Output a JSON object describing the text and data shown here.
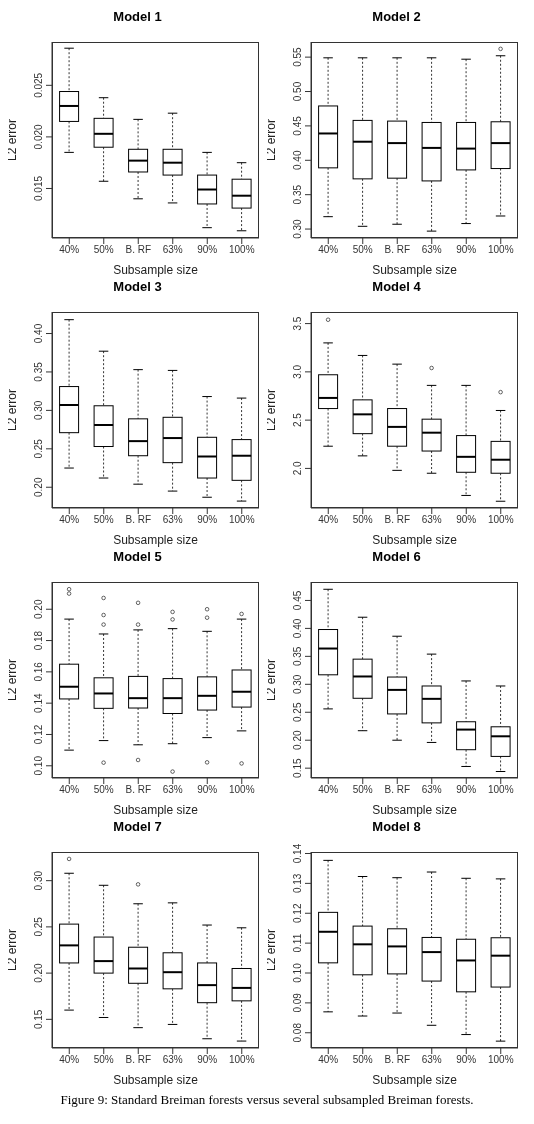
{
  "chart_data": [
    {
      "type": "box",
      "title": "Model 1",
      "xlabel": "Subsample size",
      "ylabel": "L2 error",
      "categories": [
        "40%",
        "50%",
        "B. RF",
        "63%",
        "90%",
        "100%"
      ],
      "ylim": [
        0.0102,
        0.0292
      ],
      "yticks": [
        {
          "value": 0.015,
          "label": "0.015"
        },
        {
          "value": 0.02,
          "label": "0.020"
        },
        {
          "value": 0.025,
          "label": "0.025"
        }
      ],
      "boxes": [
        {
          "low": 0.0185,
          "q1": 0.0215,
          "median": 0.023,
          "q3": 0.0244,
          "high": 0.0286
        },
        {
          "low": 0.0157,
          "q1": 0.019,
          "median": 0.0203,
          "q3": 0.0218,
          "high": 0.0238
        },
        {
          "low": 0.014,
          "q1": 0.0166,
          "median": 0.0177,
          "q3": 0.0188,
          "high": 0.0217
        },
        {
          "low": 0.0136,
          "q1": 0.0163,
          "median": 0.0175,
          "q3": 0.0188,
          "high": 0.0223
        },
        {
          "low": 0.0112,
          "q1": 0.0135,
          "median": 0.0149,
          "q3": 0.0163,
          "high": 0.0185
        },
        {
          "low": 0.0109,
          "q1": 0.0131,
          "median": 0.0143,
          "q3": 0.0159,
          "high": 0.0175
        }
      ]
    },
    {
      "type": "box",
      "title": "Model 2",
      "xlabel": "Subsample size",
      "ylabel": "L2 error",
      "categories": [
        "40%",
        "50%",
        "B. RF",
        "63%",
        "90%",
        "100%"
      ],
      "ylim": [
        0.287,
        0.572
      ],
      "yticks": [
        {
          "value": 0.3,
          "label": "0.30"
        },
        {
          "value": 0.35,
          "label": "0.35"
        },
        {
          "value": 0.4,
          "label": "0.40"
        },
        {
          "value": 0.45,
          "label": "0.45"
        },
        {
          "value": 0.5,
          "label": "0.50"
        },
        {
          "value": 0.55,
          "label": "0.55"
        }
      ],
      "boxes": [
        {
          "low": 0.318,
          "q1": 0.389,
          "median": 0.439,
          "q3": 0.479,
          "high": 0.549
        },
        {
          "low": 0.304,
          "q1": 0.373,
          "median": 0.427,
          "q3": 0.458,
          "high": 0.549
        },
        {
          "low": 0.307,
          "q1": 0.374,
          "median": 0.425,
          "q3": 0.457,
          "high": 0.549
        },
        {
          "low": 0.297,
          "q1": 0.37,
          "median": 0.418,
          "q3": 0.455,
          "high": 0.549
        },
        {
          "low": 0.308,
          "q1": 0.386,
          "median": 0.417,
          "q3": 0.455,
          "high": 0.547
        },
        {
          "low": 0.319,
          "q1": 0.388,
          "median": 0.425,
          "q3": 0.456,
          "high": 0.552,
          "outliers": [
            0.562
          ]
        }
      ]
    },
    {
      "type": "box",
      "title": "Model 3",
      "xlabel": "Subsample size",
      "ylabel": "L2 error",
      "categories": [
        "40%",
        "50%",
        "B. RF",
        "63%",
        "90%",
        "100%"
      ],
      "ylim": [
        0.173,
        0.428
      ],
      "yticks": [
        {
          "value": 0.2,
          "label": "0.20"
        },
        {
          "value": 0.25,
          "label": "0.25"
        },
        {
          "value": 0.3,
          "label": "0.30"
        },
        {
          "value": 0.35,
          "label": "0.35"
        },
        {
          "value": 0.4,
          "label": "0.40"
        }
      ],
      "boxes": [
        {
          "low": 0.225,
          "q1": 0.271,
          "median": 0.307,
          "q3": 0.331,
          "high": 0.418
        },
        {
          "low": 0.212,
          "q1": 0.253,
          "median": 0.281,
          "q3": 0.306,
          "high": 0.377
        },
        {
          "low": 0.204,
          "q1": 0.241,
          "median": 0.26,
          "q3": 0.289,
          "high": 0.353
        },
        {
          "low": 0.195,
          "q1": 0.232,
          "median": 0.264,
          "q3": 0.291,
          "high": 0.352
        },
        {
          "low": 0.187,
          "q1": 0.212,
          "median": 0.24,
          "q3": 0.265,
          "high": 0.318
        },
        {
          "low": 0.182,
          "q1": 0.209,
          "median": 0.241,
          "q3": 0.262,
          "high": 0.316
        }
      ]
    },
    {
      "type": "box",
      "title": "Model 4",
      "xlabel": "Subsample size",
      "ylabel": "L2 error",
      "categories": [
        "40%",
        "50%",
        "B. RF",
        "63%",
        "90%",
        "100%"
      ],
      "ylim": [
        1.59,
        3.62
      ],
      "yticks": [
        {
          "value": 2,
          "label": "2.0"
        },
        {
          "value": 2.5,
          "label": "2.5"
        },
        {
          "value": 3,
          "label": "3.0"
        },
        {
          "value": 3.5,
          "label": "3.5"
        }
      ],
      "boxes": [
        {
          "low": 2.23,
          "q1": 2.62,
          "median": 2.73,
          "q3": 2.97,
          "high": 3.3,
          "outliers": [
            3.54
          ]
        },
        {
          "low": 2.13,
          "q1": 2.36,
          "median": 2.56,
          "q3": 2.71,
          "high": 3.17
        },
        {
          "low": 1.98,
          "q1": 2.23,
          "median": 2.43,
          "q3": 2.62,
          "high": 3.08
        },
        {
          "low": 1.95,
          "q1": 2.18,
          "median": 2.37,
          "q3": 2.51,
          "high": 2.86,
          "outliers": [
            3.04
          ]
        },
        {
          "low": 1.72,
          "q1": 1.96,
          "median": 2.12,
          "q3": 2.34,
          "high": 2.86
        },
        {
          "low": 1.66,
          "q1": 1.95,
          "median": 2.09,
          "q3": 2.28,
          "high": 2.6,
          "outliers": [
            2.79
          ]
        }
      ]
    },
    {
      "type": "box",
      "title": "Model 5",
      "xlabel": "Subsample size",
      "ylabel": "L2 error",
      "categories": [
        "40%",
        "50%",
        "B. RF",
        "63%",
        "90%",
        "100%"
      ],
      "ylim": [
        0.0922,
        0.2174
      ],
      "yticks": [
        {
          "value": 0.1,
          "label": "0.10"
        },
        {
          "value": 0.12,
          "label": "0.12"
        },
        {
          "value": 0.14,
          "label": "0.14"
        },
        {
          "value": 0.16,
          "label": "0.16"
        },
        {
          "value": 0.18,
          "label": "0.18"
        },
        {
          "value": 0.2,
          "label": "0.20"
        }
      ],
      "boxes": [
        {
          "low": 0.11,
          "q1": 0.1427,
          "median": 0.1505,
          "q3": 0.1649,
          "high": 0.1937,
          "outliers": [
            0.2128,
            0.21
          ]
        },
        {
          "low": 0.1161,
          "q1": 0.1367,
          "median": 0.1462,
          "q3": 0.1562,
          "high": 0.1842,
          "outliers": [
            0.2072,
            0.1963,
            0.1902,
            0.102
          ]
        },
        {
          "low": 0.1134,
          "q1": 0.1369,
          "median": 0.1432,
          "q3": 0.1571,
          "high": 0.1868,
          "outliers": [
            0.2041,
            0.1902,
            0.1037
          ]
        },
        {
          "low": 0.1141,
          "q1": 0.1334,
          "median": 0.1432,
          "q3": 0.1557,
          "high": 0.1876,
          "outliers": [
            0.1983,
            0.1935,
            0.0963
          ]
        },
        {
          "low": 0.118,
          "q1": 0.1356,
          "median": 0.1447,
          "q3": 0.1568,
          "high": 0.1859,
          "outliers": [
            0.2,
            0.1946,
            0.1022
          ]
        },
        {
          "low": 0.1223,
          "q1": 0.1375,
          "median": 0.1473,
          "q3": 0.1612,
          "high": 0.1937,
          "outliers": [
            0.197,
            0.1015
          ]
        }
      ]
    },
    {
      "type": "box",
      "title": "Model 6",
      "xlabel": "Subsample size",
      "ylabel": "L2 error",
      "categories": [
        "40%",
        "50%",
        "B. RF",
        "63%",
        "90%",
        "100%"
      ],
      "ylim": [
        0.1324,
        0.483
      ],
      "yticks": [
        {
          "value": 0.15,
          "label": "0.15"
        },
        {
          "value": 0.2,
          "label": "0.20"
        },
        {
          "value": 0.25,
          "label": "0.25"
        },
        {
          "value": 0.3,
          "label": "0.30"
        },
        {
          "value": 0.35,
          "label": "0.35"
        },
        {
          "value": 0.4,
          "label": "0.40"
        },
        {
          "value": 0.45,
          "label": "0.45"
        }
      ],
      "boxes": [
        {
          "low": 0.256,
          "q1": 0.317,
          "median": 0.364,
          "q3": 0.398,
          "high": 0.47
        },
        {
          "low": 0.217,
          "q1": 0.275,
          "median": 0.314,
          "q3": 0.345,
          "high": 0.42
        },
        {
          "low": 0.2,
          "q1": 0.247,
          "median": 0.29,
          "q3": 0.313,
          "high": 0.386
        },
        {
          "low": 0.196,
          "q1": 0.231,
          "median": 0.274,
          "q3": 0.297,
          "high": 0.354
        },
        {
          "low": 0.153,
          "q1": 0.183,
          "median": 0.219,
          "q3": 0.233,
          "high": 0.306
        },
        {
          "low": 0.144,
          "q1": 0.171,
          "median": 0.207,
          "q3": 0.224,
          "high": 0.297
        }
      ]
    },
    {
      "type": "box",
      "title": "Model 7",
      "xlabel": "Subsample size",
      "ylabel": "L2 error",
      "categories": [
        "40%",
        "50%",
        "B. RF",
        "63%",
        "90%",
        "100%"
      ],
      "ylim": [
        0.119,
        0.331
      ],
      "yticks": [
        {
          "value": 0.15,
          "label": "0.15"
        },
        {
          "value": 0.2,
          "label": "0.20"
        },
        {
          "value": 0.25,
          "label": "0.25"
        },
        {
          "value": 0.3,
          "label": "0.30"
        }
      ],
      "boxes": [
        {
          "low": 0.16,
          "q1": 0.211,
          "median": 0.23,
          "q3": 0.253,
          "high": 0.308,
          "outliers": [
            0.3235
          ]
        },
        {
          "low": 0.152,
          "q1": 0.2,
          "median": 0.213,
          "q3": 0.239,
          "high": 0.295
        },
        {
          "low": 0.141,
          "q1": 0.189,
          "median": 0.205,
          "q3": 0.228,
          "high": 0.275,
          "outliers": [
            0.296
          ]
        },
        {
          "low": 0.1445,
          "q1": 0.183,
          "median": 0.201,
          "q3": 0.222,
          "high": 0.276
        },
        {
          "low": 0.129,
          "q1": 0.168,
          "median": 0.187,
          "q3": 0.211,
          "high": 0.252
        },
        {
          "low": 0.1265,
          "q1": 0.17,
          "median": 0.184,
          "q3": 0.205,
          "high": 0.249
        }
      ]
    },
    {
      "type": "box",
      "title": "Model 8",
      "xlabel": "Subsample size",
      "ylabel": "L2 error",
      "categories": [
        "40%",
        "50%",
        "B. RF",
        "63%",
        "90%",
        "100%"
      ],
      "ylim": [
        0.0749,
        0.1405
      ],
      "yticks": [
        {
          "value": 0.08,
          "label": "0.08"
        },
        {
          "value": 0.09,
          "label": "0.09"
        },
        {
          "value": 0.1,
          "label": "0.10"
        },
        {
          "value": 0.11,
          "label": "0.11"
        },
        {
          "value": 0.12,
          "label": "0.12"
        },
        {
          "value": 0.13,
          "label": "0.13"
        },
        {
          "value": 0.14,
          "label": "0.14"
        }
      ],
      "boxes": [
        {
          "low": 0.087,
          "q1": 0.1034,
          "median": 0.1138,
          "q3": 0.1203,
          "high": 0.1377
        },
        {
          "low": 0.0856,
          "q1": 0.0994,
          "median": 0.1096,
          "q3": 0.1157,
          "high": 0.1323
        },
        {
          "low": 0.0866,
          "q1": 0.0997,
          "median": 0.1089,
          "q3": 0.1148,
          "high": 0.1319
        },
        {
          "low": 0.0825,
          "q1": 0.0973,
          "median": 0.107,
          "q3": 0.1119,
          "high": 0.1338
        },
        {
          "low": 0.0794,
          "q1": 0.0937,
          "median": 0.1042,
          "q3": 0.1113,
          "high": 0.1317
        },
        {
          "low": 0.0772,
          "q1": 0.0953,
          "median": 0.1058,
          "q3": 0.1118,
          "high": 0.1315
        }
      ],
      "annotations": [
        "Figure 9: Standard Breiman forests versus several subsampled Breiman forests."
      ]
    }
  ]
}
